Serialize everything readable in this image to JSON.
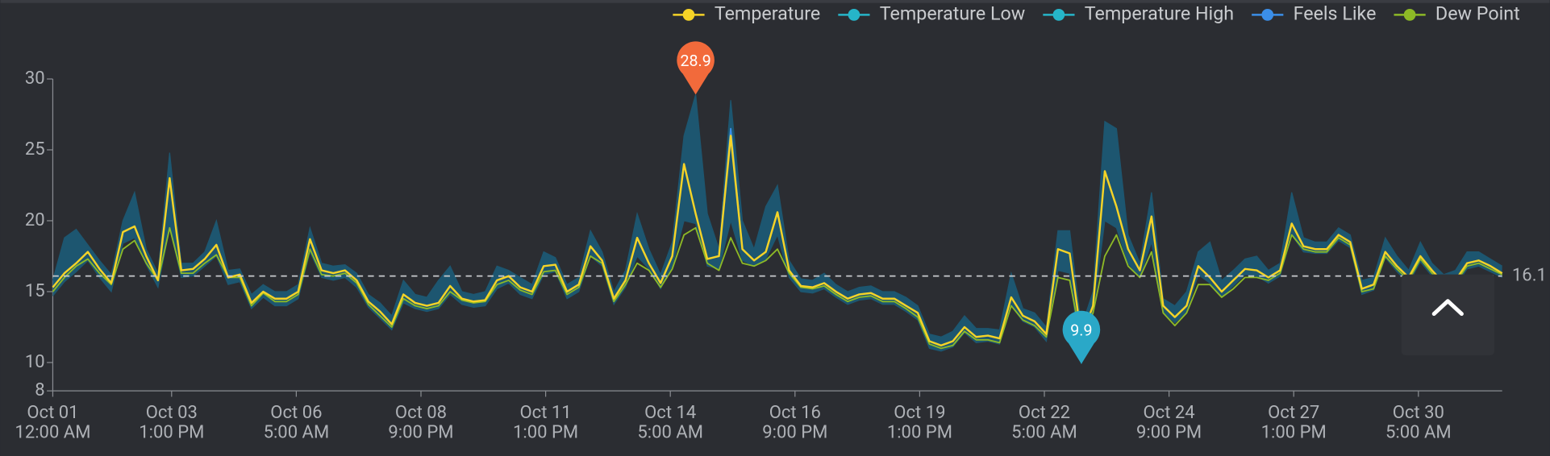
{
  "chart_data": {
    "type": "line",
    "x": [
      0,
      6,
      12,
      18,
      24,
      30,
      36,
      42,
      48,
      54,
      60,
      66,
      72,
      78,
      84,
      90,
      96,
      102,
      108,
      114,
      120,
      126,
      132,
      138,
      144,
      150,
      156,
      162,
      168,
      174,
      180,
      186,
      192,
      198,
      204,
      210,
      216,
      222,
      228,
      234,
      240,
      246,
      252,
      258,
      264,
      270,
      276,
      282,
      288,
      294,
      300,
      306,
      312,
      318,
      324,
      330,
      336,
      342,
      348,
      354,
      360,
      366,
      372,
      378,
      384,
      390,
      396,
      402,
      408,
      414,
      420,
      426,
      432,
      438,
      444,
      450,
      456,
      462,
      468,
      474,
      480,
      486,
      492,
      498,
      504,
      510,
      516,
      522,
      528,
      534,
      540,
      546,
      552,
      558,
      564,
      570,
      576,
      582,
      588,
      594,
      600,
      606,
      612,
      618,
      624,
      630,
      636,
      642,
      648,
      654,
      660,
      666,
      672,
      678,
      684,
      690,
      696,
      702,
      708,
      714,
      720,
      726,
      732,
      738,
      744
    ],
    "series": [
      {
        "name": "Temperature",
        "color": "#f5d327",
        "values": [
          15.3,
          16.3,
          17.0,
          17.8,
          16.6,
          15.6,
          19.2,
          19.6,
          17.5,
          15.8,
          23.0,
          16.5,
          16.6,
          17.3,
          18.3,
          16.0,
          16.2,
          14.2,
          15.0,
          14.5,
          14.5,
          15.0,
          18.7,
          16.5,
          16.3,
          16.5,
          15.8,
          14.3,
          13.6,
          12.7,
          14.8,
          14.2,
          14.0,
          14.2,
          15.4,
          14.5,
          14.3,
          14.4,
          15.8,
          16.1,
          15.3,
          15.0,
          16.8,
          16.9,
          15.0,
          15.5,
          18.2,
          17.2,
          14.5,
          15.8,
          18.8,
          17.0,
          15.6,
          17.5,
          24.0,
          20.5,
          17.3,
          17.5,
          26.0,
          18.0,
          17.2,
          17.8,
          20.6,
          16.5,
          15.4,
          15.3,
          15.6,
          15.0,
          14.5,
          14.8,
          14.9,
          14.5,
          14.5,
          14.0,
          13.5,
          11.5,
          11.2,
          11.5,
          12.5,
          11.8,
          11.9,
          11.7,
          14.6,
          13.3,
          12.9,
          12.0,
          18.0,
          17.7,
          11.8,
          14.0,
          23.5,
          21.0,
          18.0,
          16.5,
          20.3,
          14.0,
          13.2,
          14.0,
          16.8,
          16.0,
          15.0,
          15.8,
          16.6,
          16.5,
          16.0,
          16.5,
          19.8,
          18.2,
          18.0,
          18.0,
          19.0,
          18.5,
          15.2,
          15.5,
          17.8,
          16.8,
          16.0,
          17.5,
          16.5,
          15.6,
          15.8,
          17.0,
          17.2,
          16.8,
          16.3
        ]
      },
      {
        "name": "Temperature Low",
        "color": "#26b5c9",
        "values": [
          14.7,
          15.7,
          16.4,
          17.2,
          16.0,
          15.0,
          18.4,
          18.8,
          16.9,
          15.3,
          19.5,
          16.0,
          16.1,
          16.8,
          17.5,
          15.5,
          15.7,
          13.8,
          14.6,
          14.0,
          14.0,
          14.5,
          17.8,
          16.0,
          15.8,
          16.0,
          15.3,
          13.9,
          13.1,
          12.3,
          14.2,
          13.8,
          13.6,
          13.8,
          14.8,
          14.1,
          13.9,
          14.0,
          15.2,
          15.6,
          14.8,
          14.5,
          16.2,
          16.4,
          14.5,
          15.0,
          17.5,
          16.8,
          14.1,
          15.3,
          17.5,
          16.6,
          15.2,
          16.8,
          20.0,
          19.8,
          16.8,
          16.6,
          20.0,
          17.2,
          16.8,
          17.3,
          19.0,
          16.0,
          15.0,
          14.9,
          15.2,
          14.6,
          14.1,
          14.4,
          14.5,
          14.1,
          14.1,
          13.6,
          13.0,
          11.0,
          10.8,
          11.1,
          12.1,
          11.4,
          11.5,
          11.3,
          14.0,
          12.9,
          12.5,
          11.5,
          16.5,
          16.3,
          9.9,
          13.5,
          20.0,
          19.5,
          17.0,
          16.0,
          18.5,
          13.6,
          12.8,
          13.6,
          16.2,
          15.6,
          14.6,
          15.4,
          16.2,
          16.1,
          15.6,
          16.1,
          19.0,
          17.8,
          17.7,
          17.7,
          18.6,
          18.1,
          14.8,
          15.1,
          17.4,
          16.4,
          15.6,
          17.1,
          16.1,
          15.2,
          15.4,
          16.6,
          16.8,
          16.4,
          16.0
        ]
      },
      {
        "name": "Temperature High",
        "color": "#26b5c9",
        "values": [
          15.8,
          18.8,
          19.4,
          18.3,
          17.2,
          16.2,
          20.0,
          22.0,
          18.0,
          16.3,
          24.8,
          17.0,
          17.0,
          17.8,
          20.0,
          16.5,
          16.6,
          14.8,
          15.5,
          15.0,
          15.0,
          15.5,
          19.5,
          17.0,
          16.8,
          16.9,
          16.3,
          14.8,
          14.2,
          13.3,
          15.8,
          14.8,
          14.6,
          15.8,
          16.8,
          15.0,
          14.8,
          15.0,
          16.8,
          16.5,
          16.0,
          15.5,
          17.8,
          17.4,
          15.5,
          16.0,
          19.3,
          17.8,
          15.0,
          16.5,
          20.5,
          18.0,
          16.2,
          18.5,
          26.0,
          28.9,
          20.5,
          18.0,
          28.5,
          20.0,
          18.0,
          21.0,
          22.5,
          17.2,
          15.9,
          15.8,
          16.3,
          15.5,
          15.0,
          15.3,
          15.4,
          15.0,
          15.0,
          14.6,
          14.0,
          12.0,
          11.8,
          12.2,
          13.3,
          12.4,
          12.4,
          12.3,
          16.3,
          13.8,
          13.5,
          12.5,
          19.3,
          19.3,
          12.5,
          15.0,
          27.0,
          26.5,
          19.0,
          17.0,
          22.0,
          14.5,
          14.0,
          15.0,
          17.8,
          18.5,
          15.8,
          16.5,
          17.3,
          17.5,
          16.5,
          17.0,
          22.0,
          18.8,
          18.5,
          18.5,
          19.5,
          19.0,
          15.8,
          16.0,
          18.8,
          17.5,
          16.5,
          18.5,
          17.0,
          16.2,
          16.5,
          17.8,
          17.8,
          17.3,
          16.8
        ]
      },
      {
        "name": "Feels Like",
        "color": "#3b8ee8",
        "values": [
          15.3,
          16.3,
          17.0,
          17.8,
          16.6,
          15.6,
          19.2,
          19.6,
          17.5,
          15.8,
          23.0,
          16.5,
          16.6,
          17.3,
          18.3,
          16.0,
          16.2,
          14.2,
          15.0,
          14.5,
          14.5,
          15.0,
          18.7,
          16.5,
          16.3,
          16.5,
          15.8,
          14.3,
          13.6,
          12.7,
          14.8,
          14.2,
          14.0,
          14.2,
          15.4,
          14.5,
          14.3,
          14.4,
          15.8,
          16.1,
          15.3,
          15.0,
          16.8,
          16.9,
          15.0,
          15.5,
          18.2,
          17.2,
          14.5,
          15.8,
          18.8,
          17.0,
          15.6,
          17.5,
          24.0,
          20.5,
          17.3,
          17.5,
          26.5,
          18.0,
          17.2,
          17.8,
          20.6,
          16.5,
          15.4,
          15.3,
          15.6,
          15.0,
          14.5,
          14.8,
          14.9,
          14.5,
          14.5,
          14.0,
          13.5,
          11.5,
          11.2,
          11.5,
          12.5,
          11.8,
          11.9,
          11.7,
          14.6,
          13.3,
          12.9,
          12.0,
          18.0,
          17.7,
          11.8,
          14.0,
          23.5,
          21.0,
          18.0,
          16.5,
          20.3,
          14.0,
          13.2,
          14.0,
          16.8,
          16.0,
          15.0,
          15.8,
          16.6,
          16.5,
          16.0,
          16.5,
          19.8,
          18.2,
          18.0,
          18.0,
          19.0,
          18.5,
          15.2,
          15.5,
          17.8,
          16.8,
          16.0,
          17.5,
          16.5,
          15.6,
          15.8,
          17.0,
          17.2,
          16.8,
          16.3
        ]
      },
      {
        "name": "Dew Point",
        "color": "#8db926",
        "values": [
          15.0,
          16.0,
          16.8,
          17.3,
          16.3,
          15.5,
          18.0,
          18.6,
          17.0,
          15.8,
          19.5,
          16.3,
          16.3,
          17.0,
          17.6,
          16.0,
          16.0,
          14.0,
          14.9,
          14.3,
          14.3,
          14.8,
          18.0,
          16.2,
          16.1,
          16.3,
          15.6,
          14.1,
          13.3,
          12.5,
          14.5,
          14.0,
          13.8,
          14.0,
          15.0,
          14.4,
          14.2,
          14.3,
          15.5,
          15.8,
          15.1,
          14.8,
          16.4,
          16.5,
          14.8,
          15.3,
          17.5,
          17.0,
          14.3,
          15.5,
          17.0,
          16.5,
          15.3,
          16.6,
          19.0,
          19.5,
          17.0,
          16.5,
          18.8,
          17.0,
          16.8,
          17.2,
          18.0,
          16.3,
          15.3,
          15.2,
          15.4,
          14.8,
          14.3,
          14.6,
          14.7,
          14.3,
          14.3,
          13.8,
          13.2,
          11.3,
          11.0,
          11.2,
          12.2,
          11.6,
          11.6,
          11.4,
          14.0,
          13.0,
          12.6,
          11.8,
          16.0,
          15.8,
          11.5,
          13.5,
          17.5,
          19.0,
          16.8,
          16.0,
          17.8,
          13.5,
          12.6,
          13.5,
          15.5,
          15.5,
          14.6,
          15.2,
          16.0,
          16.0,
          15.8,
          16.3,
          19.0,
          18.0,
          17.8,
          17.8,
          18.8,
          18.3,
          15.0,
          15.2,
          17.5,
          16.6,
          15.8,
          17.3,
          16.3,
          15.4,
          15.6,
          16.8,
          17.0,
          16.6,
          16.2
        ]
      }
    ],
    "band_color": "#1d5670",
    "xlim": [
      0,
      744
    ],
    "xticks": [
      {
        "value": 0,
        "label": "Oct 01",
        "sublabel": "12:00 AM"
      },
      {
        "value": 61,
        "label": "Oct 03",
        "sublabel": "1:00 PM"
      },
      {
        "value": 125,
        "label": "Oct 06",
        "sublabel": "5:00 AM"
      },
      {
        "value": 189,
        "label": "Oct 08",
        "sublabel": "9:00 PM"
      },
      {
        "value": 253,
        "label": "Oct 11",
        "sublabel": "1:00 PM"
      },
      {
        "value": 317,
        "label": "Oct 14",
        "sublabel": "5:00 AM"
      },
      {
        "value": 381,
        "label": "Oct 16",
        "sublabel": "9:00 PM"
      },
      {
        "value": 445,
        "label": "Oct 19",
        "sublabel": "1:00 PM"
      },
      {
        "value": 509,
        "label": "Oct 22",
        "sublabel": "5:00 AM"
      },
      {
        "value": 573,
        "label": "Oct 24",
        "sublabel": "9:00 PM"
      },
      {
        "value": 637,
        "label": "Oct 27",
        "sublabel": "1:00 PM"
      },
      {
        "value": 701,
        "label": "Oct 30",
        "sublabel": "5:00 AM"
      }
    ],
    "ylim": [
      8,
      30
    ],
    "yticks": [
      8,
      10,
      15,
      20,
      25,
      30
    ],
    "average": 16.1,
    "markers": [
      {
        "x": 330,
        "value": 28.9,
        "color": "#f26a3b"
      },
      {
        "x": 528,
        "value": 9.9,
        "color": "#2aa8c8"
      }
    ]
  }
}
